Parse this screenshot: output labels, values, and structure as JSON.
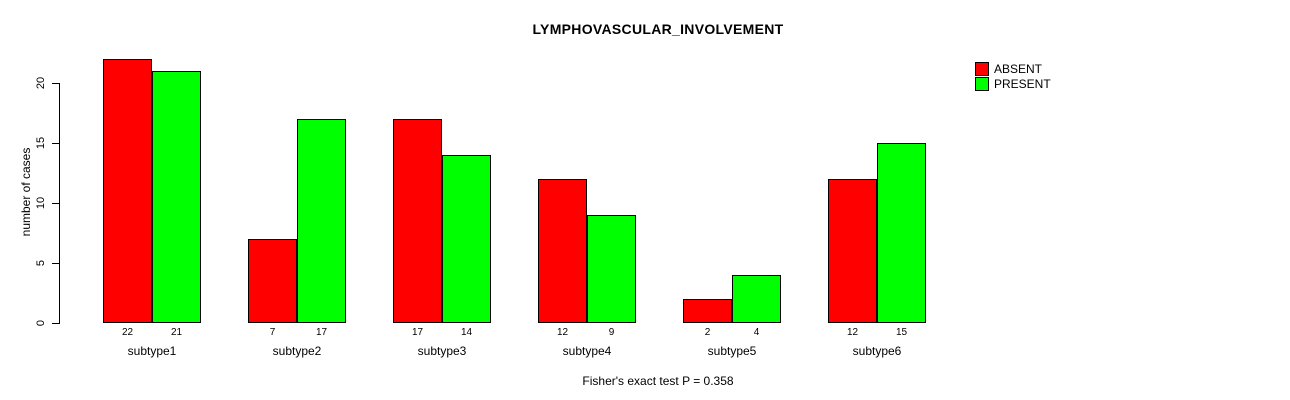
{
  "chart_data": {
    "type": "bar",
    "title": "LYMPHOVASCULAR_INVOLVEMENT",
    "ylabel": "number of cases",
    "footnote": "Fisher's exact test P = 0.358",
    "categories": [
      "subtype1",
      "subtype2",
      "subtype3",
      "subtype4",
      "subtype5",
      "subtype6"
    ],
    "series": [
      {
        "name": "ABSENT",
        "color": "#ff0000",
        "values": [
          22,
          7,
          17,
          12,
          2,
          12
        ]
      },
      {
        "name": "PRESENT",
        "color": "#00ff00",
        "values": [
          21,
          17,
          14,
          9,
          4,
          15
        ]
      }
    ],
    "yticks": [
      0,
      5,
      10,
      15,
      20
    ],
    "ylim": [
      0,
      22
    ],
    "grid": false,
    "legend_position": "top-right",
    "bar_value_labels": true,
    "axis_color": "#000000",
    "background_color": "#ffffff"
  }
}
